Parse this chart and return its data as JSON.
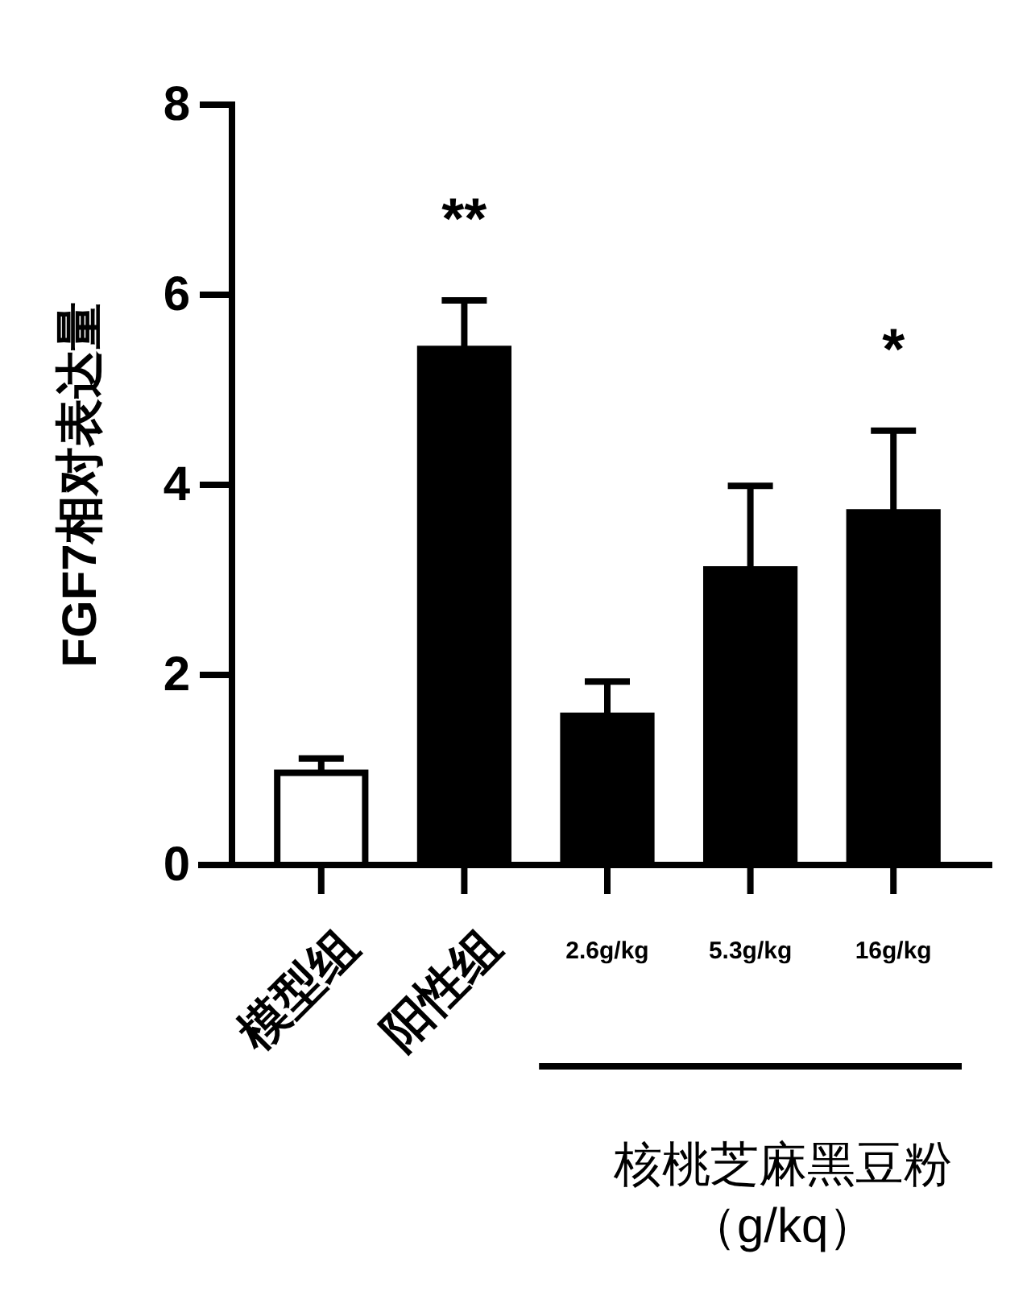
{
  "chart_data": {
    "type": "bar",
    "ylabel": "FGF7相对表达量",
    "categories": [
      "模型组",
      "阳性组",
      "2.6g/kg",
      "5.3g/kg",
      "16g/kg"
    ],
    "values": [
      0.97,
      5.43,
      1.57,
      3.11,
      3.71
    ],
    "errors": [
      [
        0.97,
        1.12
      ],
      [
        5.43,
        5.94
      ],
      [
        1.57,
        1.93
      ],
      [
        3.11,
        3.99
      ],
      [
        3.71,
        4.57
      ]
    ],
    "colors": [
      "#ffffff",
      "#000000",
      "#000000",
      "#000000",
      "#000000"
    ],
    "value_labels": [
      null,
      "**",
      null,
      null,
      "*"
    ],
    "ylim": [
      0,
      8
    ],
    "yticks": [
      0,
      2,
      4,
      6,
      8
    ],
    "grid": false,
    "annotations": [
      "核桃芝麻黑豆粉",
      "（g/kq）"
    ]
  }
}
